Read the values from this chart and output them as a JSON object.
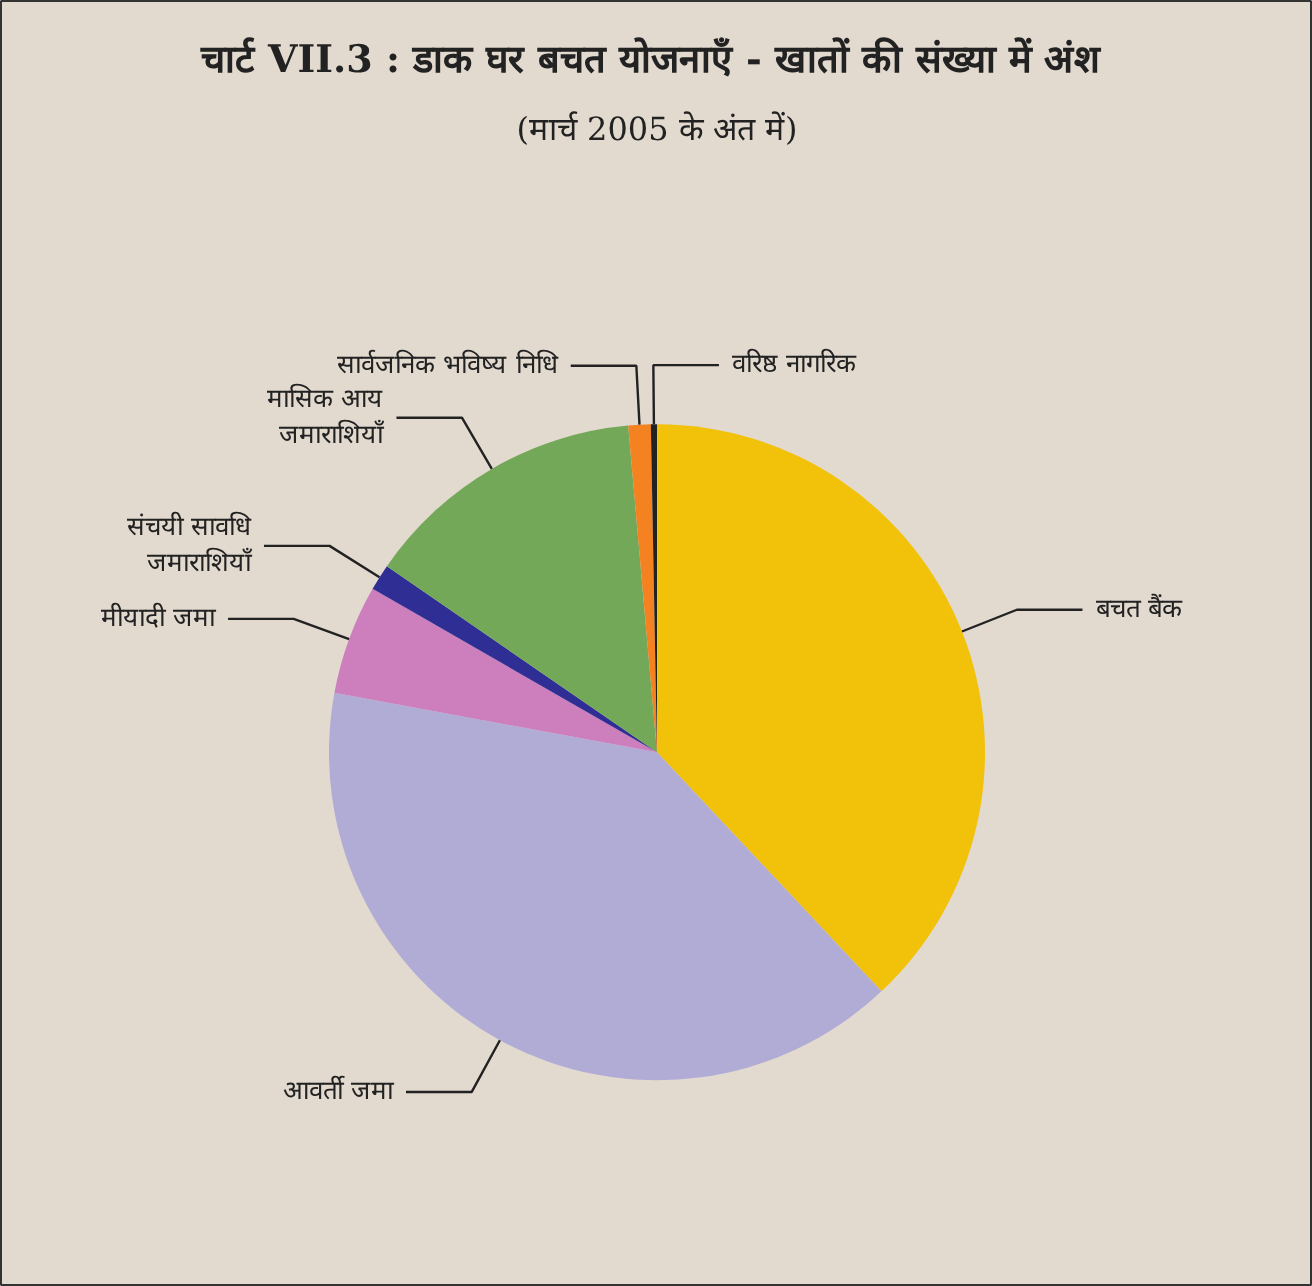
{
  "chart_data": {
    "type": "pie",
    "title": "चार्ट VII.3 :  डाक घर बचत योजनाएँ - खातों की संख्या में अंश",
    "subtitle": "(मार्च 2005 के अंत में)",
    "categories": [
      "बचत बैंक",
      "आवर्ती जमा",
      "मीयादी जमा",
      "संचयी सावधि\nजमाराशियाँ",
      "मासिक आय\nजमाराशियाँ",
      "सार्वजनिक भविष्य निधि",
      "वरिष्ठ नागरिक"
    ],
    "values": [
      38.0,
      39.9,
      5.4,
      1.3,
      14.0,
      1.1,
      0.3
    ],
    "colors": [
      "#f2c10a",
      "#b0acd6",
      "#cc7fbc",
      "#2e2e94",
      "#72a858",
      "#f58220",
      "#222222"
    ]
  }
}
